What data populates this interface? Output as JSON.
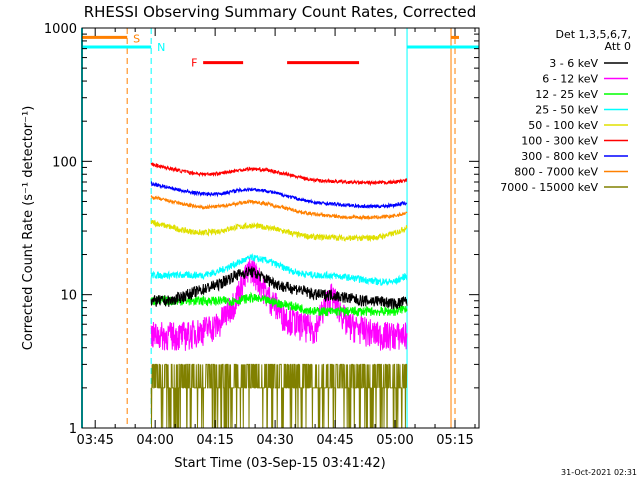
{
  "chart_data": {
    "type": "line",
    "title": "RHESSI Observing Summary Count Rates, Corrected",
    "xlabel": "Start Time (03-Sep-15 03:41:42)",
    "ylabel": "Corrected Count Rate (s⁻¹ detector⁻¹)",
    "yscale": "log",
    "xlim": [
      "03:41:42",
      "05:21:00"
    ],
    "ylim": [
      1,
      1000
    ],
    "x_ticks": [
      "03:45",
      "04:00",
      "04:15",
      "04:30",
      "04:45",
      "05:00",
      "05:15"
    ],
    "y_ticks": [
      "1",
      "10",
      "100",
      "1000"
    ],
    "legend_title": [
      "Det 1,3,5,6,7,",
      "Att 0"
    ],
    "legend_position": "outside right",
    "timestamp": "31-Oct-2021 02:31",
    "series": [
      {
        "name": "3 - 6 keV",
        "color": "#000000",
        "x": [
          "03:59",
          "04:04",
          "04:08",
          "04:12",
          "04:16",
          "04:20",
          "04:24",
          "04:28",
          "04:32",
          "04:36",
          "04:40",
          "04:44",
          "04:48",
          "04:52",
          "04:56",
          "05:00",
          "05:03"
        ],
        "values": [
          9,
          9,
          10,
          11,
          12,
          14,
          15,
          13,
          11.5,
          11,
          10,
          10,
          9.5,
          9,
          9,
          8.5,
          9
        ]
      },
      {
        "name": "6 - 12 keV",
        "color": "#ff00ff",
        "x": [
          "03:59",
          "04:04",
          "04:08",
          "04:12",
          "04:16",
          "04:20",
          "04:24",
          "04:28",
          "04:32",
          "04:36",
          "04:40",
          "04:44",
          "04:48",
          "04:52",
          "04:56",
          "05:00",
          "05:03"
        ],
        "values": [
          5,
          5,
          5,
          5.5,
          6,
          9,
          16,
          10,
          7,
          6,
          5.5,
          10,
          6,
          5.5,
          5,
          5,
          5
        ]
      },
      {
        "name": "12 - 25 keV",
        "color": "#00ff00",
        "x": [
          "03:59",
          "04:04",
          "04:08",
          "04:12",
          "04:16",
          "04:20",
          "04:24",
          "04:28",
          "04:32",
          "04:36",
          "04:40",
          "04:44",
          "04:48",
          "04:52",
          "04:56",
          "05:00",
          "05:03"
        ],
        "values": [
          9,
          9,
          9,
          9,
          9,
          9,
          9.5,
          9,
          8.5,
          8,
          7.5,
          7.5,
          7.5,
          7.5,
          7.5,
          7.5,
          8
        ]
      },
      {
        "name": "25 - 50 keV",
        "color": "#00ffff",
        "x": [
          "03:59",
          "04:04",
          "04:08",
          "04:12",
          "04:16",
          "04:20",
          "04:24",
          "04:28",
          "04:32",
          "04:36",
          "04:40",
          "04:44",
          "04:48",
          "04:52",
          "04:56",
          "05:00",
          "05:03"
        ],
        "values": [
          14,
          14,
          14,
          14,
          15,
          17,
          19,
          18,
          16,
          14.5,
          14,
          14,
          13.5,
          13,
          12.5,
          12.5,
          14
        ]
      },
      {
        "name": "50 - 100 keV",
        "color": "#e0e000",
        "x": [
          "03:59",
          "04:04",
          "04:08",
          "04:12",
          "04:16",
          "04:20",
          "04:24",
          "04:28",
          "04:32",
          "04:36",
          "04:40",
          "04:44",
          "04:48",
          "04:52",
          "04:56",
          "05:00",
          "05:03"
        ],
        "values": [
          35,
          32,
          30,
          29,
          30,
          32,
          33,
          32,
          30,
          28,
          27,
          27,
          26.5,
          26.5,
          27,
          29,
          32
        ]
      },
      {
        "name": "100 - 300 keV",
        "color": "#ff0000",
        "x": [
          "03:59",
          "04:04",
          "04:08",
          "04:12",
          "04:16",
          "04:20",
          "04:24",
          "04:28",
          "04:32",
          "04:36",
          "04:40",
          "04:44",
          "04:48",
          "04:52",
          "04:56",
          "05:00",
          "05:03"
        ],
        "values": [
          95,
          88,
          83,
          80,
          81,
          85,
          88,
          86,
          81,
          76,
          72,
          71,
          70,
          69,
          69,
          70,
          72
        ]
      },
      {
        "name": "300 - 800 keV",
        "color": "#0000ff",
        "x": [
          "03:59",
          "04:04",
          "04:08",
          "04:12",
          "04:16",
          "04:20",
          "04:24",
          "04:28",
          "04:32",
          "04:36",
          "04:40",
          "04:44",
          "04:48",
          "04:52",
          "04:56",
          "05:00",
          "05:03"
        ],
        "values": [
          68,
          63,
          59,
          57,
          57,
          60,
          62,
          60,
          56,
          52,
          49,
          48,
          47,
          46,
          46,
          47,
          49
        ]
      },
      {
        "name": "800 - 7000 keV",
        "color": "#ff8000",
        "x": [
          "03:59",
          "04:04",
          "04:08",
          "04:12",
          "04:16",
          "04:20",
          "04:24",
          "04:28",
          "04:32",
          "04:36",
          "04:40",
          "04:44",
          "04:48",
          "04:52",
          "04:56",
          "05:00",
          "05:03"
        ],
        "values": [
          54,
          50,
          47,
          45,
          46,
          48,
          50,
          48,
          45,
          42,
          40,
          39,
          38,
          38,
          38,
          39,
          41
        ]
      },
      {
        "name": "7000 - 15000 keV",
        "color": "#808000",
        "x": [
          "03:59",
          "04:04",
          "04:08",
          "04:12",
          "04:16",
          "04:20",
          "04:24",
          "04:28",
          "04:32",
          "04:36",
          "04:40",
          "04:44",
          "04:48",
          "04:52",
          "04:56",
          "05:00",
          "05:03"
        ],
        "values": [
          2,
          2,
          2,
          2.5,
          3,
          3,
          2.5,
          2,
          2,
          2,
          2,
          2,
          2,
          2,
          2,
          2,
          2
        ]
      }
    ],
    "annotations": {
      "flags": [
        {
          "label": "S",
          "color": "#ff8000",
          "start": "03:41:42",
          "end": "03:53"
        },
        {
          "label": "N",
          "color": "#00ffff",
          "start": "03:41:42",
          "end": "03:59"
        },
        {
          "label": "F",
          "color": "#ff0000",
          "segments": [
            [
              "04:12",
              "04:22"
            ],
            [
              "04:33",
              "04:51"
            ]
          ]
        }
      ],
      "vertical_lines": [
        {
          "color": "#ff8000",
          "style": "dashed",
          "time": "03:53"
        },
        {
          "color": "#00ffff",
          "style": "dashed",
          "time": "03:59"
        },
        {
          "color": "#00ffff",
          "style": "solid",
          "time": "05:03"
        },
        {
          "color": "#ff8000",
          "style": "solid",
          "time": "05:14"
        },
        {
          "color": "#ff8000",
          "style": "dashed",
          "time": "05:15"
        }
      ]
    }
  }
}
